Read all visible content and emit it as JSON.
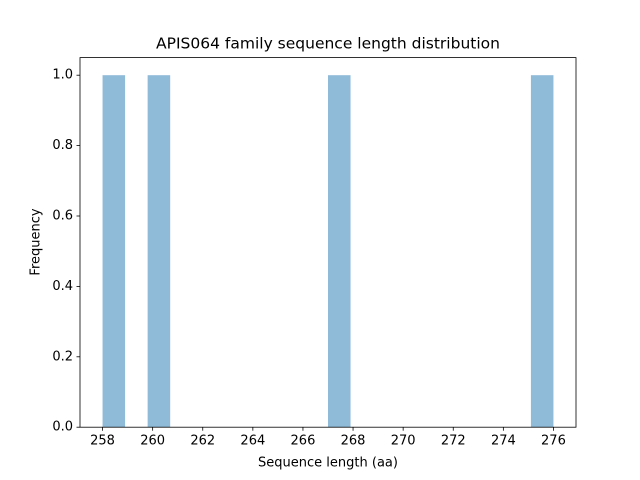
{
  "chart_data": {
    "type": "histogram",
    "title": "APIS064 family sequence length distribution",
    "x_label": "Sequence length (aa)",
    "y_label": "Frequency",
    "bins": [
      258,
      258.9,
      259.8,
      260.7,
      261.6,
      262.5,
      263.4,
      264.3,
      265.2,
      266.1,
      267,
      267.9,
      268.8,
      269.7,
      270.6,
      271.5,
      272.4,
      273.3,
      274.2,
      275.1,
      276
    ],
    "values": [
      1,
      0,
      1,
      0,
      0,
      0,
      0,
      0,
      0,
      0,
      1,
      0,
      0,
      0,
      0,
      0,
      0,
      0,
      0,
      1
    ],
    "color": "#8fbbd9",
    "xlim": [
      257.1,
      276.9
    ],
    "ylim": [
      0,
      1.05
    ],
    "xticks": [
      258,
      260,
      262,
      264,
      266,
      268,
      270,
      272,
      274,
      276
    ],
    "yticks": [
      {
        "value": 0,
        "label": "0.0"
      },
      {
        "value": 0.2,
        "label": "0.2"
      },
      {
        "value": 0.4,
        "label": "0.4"
      },
      {
        "value": 0.6,
        "label": "0.6"
      },
      {
        "value": 0.8,
        "label": "0.8"
      },
      {
        "value": 1,
        "label": "1.0"
      }
    ]
  }
}
